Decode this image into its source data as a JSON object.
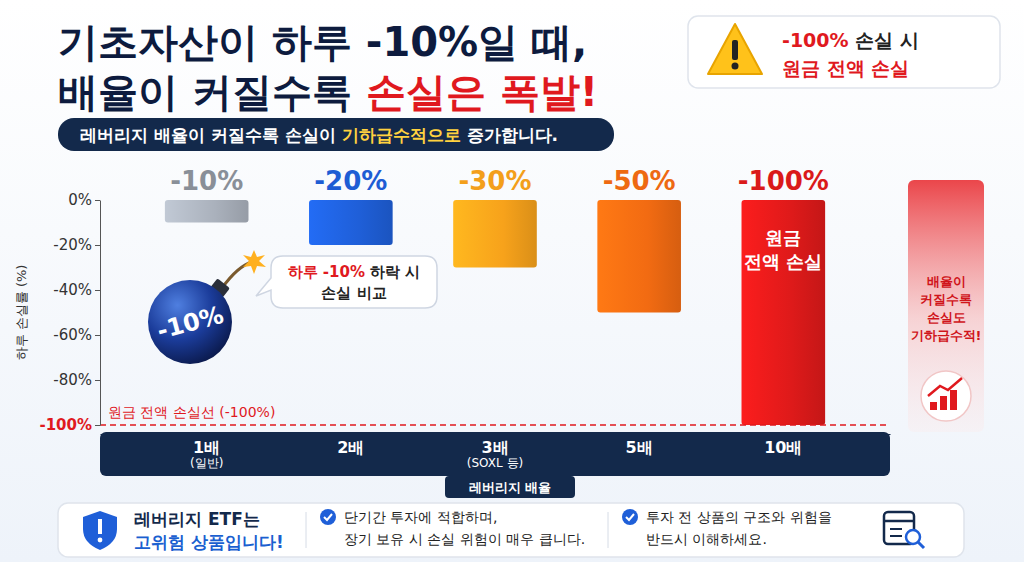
{
  "chart_data": {
    "type": "bar",
    "title": [
      [
        "기초자산이 하루 -10%일 때,"
      ],
      [
        "배율이 커질수록 ",
        "손실은 폭발!"
      ]
    ],
    "subtitle": [
      "레버리지 배율이 커질수록 손실이 ",
      "기하급수적으로",
      " 증가합니다."
    ],
    "categories": [
      "1배",
      "2배",
      "3배",
      "5배",
      "10배"
    ],
    "category_notes": [
      "(일반)",
      null,
      "(SOXL 등)",
      null,
      null
    ],
    "values": [
      -10,
      -20,
      -30,
      -50,
      -100
    ],
    "value_labels": [
      "-10%",
      "-20%",
      "-30%",
      "-50%",
      "-100%"
    ],
    "data_labels": true,
    "colors": [
      "#aab1bc",
      "#1f5fd8",
      "#f7a21b",
      "#f26b12",
      "#de1a1a"
    ],
    "bar_texts": [
      null,
      null,
      null,
      null,
      [
        "원금",
        "전액 손실"
      ]
    ],
    "xlabel": "레버리지 배율",
    "ylabel": "하루 손실률 (%)",
    "ylim": [
      -100,
      0
    ],
    "yticks": [
      {
        "value": 0,
        "label": "0%"
      },
      {
        "value": -20,
        "label": "-20%"
      },
      {
        "value": -40,
        "label": "-40%"
      },
      {
        "value": -60,
        "label": "-60%"
      },
      {
        "value": -80,
        "label": "-80%"
      },
      {
        "value": -100,
        "label": "-100%"
      }
    ],
    "grid": false,
    "reference_line": {
      "value": -100,
      "label": "원금 전액 손실선 (-100%)"
    },
    "annotations": {
      "bomb": "-10%",
      "bubble": [
        [
          "하루 -10%",
          " 하락 시"
        ],
        [
          "손실 비교"
        ]
      ],
      "side_note": [
        "배율이",
        "커질수록",
        "손실도",
        "기하급수적!"
      ]
    }
  },
  "warning_box": [
    [
      "-100%",
      " 손실 시"
    ],
    [
      "원금 전액 손실"
    ]
  ],
  "footer": {
    "warning": [
      "레버리지 ETF는",
      "고위험 상품입니다!"
    ],
    "points": [
      [
        "단기간 투자에 적합하며,",
        "장기 보유 시 손실 위험이 매우 큽니다."
      ],
      [
        "투자 전 상품의 구조와 위험을",
        "반드시 이해하세요."
      ]
    ]
  }
}
